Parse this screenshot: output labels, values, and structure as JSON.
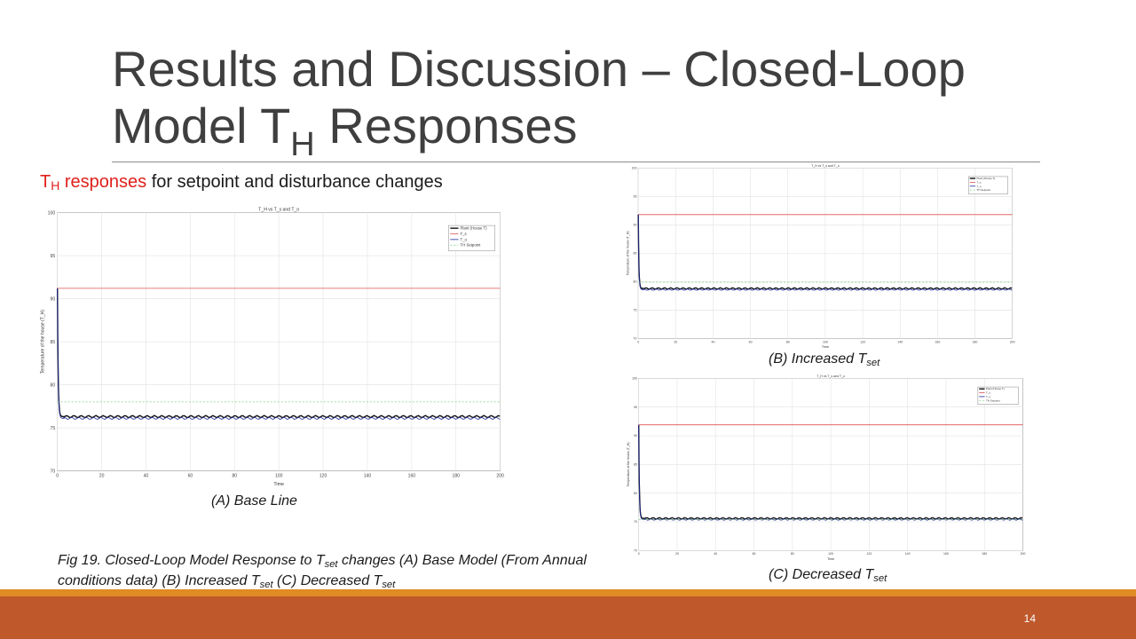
{
  "slide": {
    "title_line1": "Results and Discussion – Closed-Loop",
    "title_line2_a": "Model T",
    "title_line2_sub": "H",
    "title_line2_b": " Responses",
    "subtitle_red_a": "T",
    "subtitle_red_sub": "H",
    "subtitle_red_b": " responses",
    "subtitle_rest": " for setpoint and disturbance changes",
    "caption_a": "(A) Base Line",
    "caption_b_text": "(B) Increased T",
    "caption_b_sub": "set",
    "caption_c_text": "(C) Decreased T",
    "caption_c_sub": "set",
    "fig_caption_1": "Fig 19. Closed-Loop Model Response to T",
    "fig_caption_sub1": "set",
    "fig_caption_2": " changes (A) Base Model (From Annual conditions data) (B) Increased T",
    "fig_caption_sub2": "set",
    "fig_caption_3": "  (C) Decreased T",
    "fig_caption_sub3": "set",
    "page_number": "14"
  },
  "colors": {
    "plant": "#111111",
    "ts": "#e05050",
    "to": "#1f2a9c",
    "setpoint": "#7fcf7f",
    "band_orange": "#e18b24",
    "band_rust": "#bf582b"
  },
  "chart_data": [
    {
      "type": "line",
      "title": "T_H vs T_s and T_o",
      "xlabel": "Time",
      "ylabel": "Temperature of the house (T_H)",
      "xlim": [
        0,
        200
      ],
      "ylim": [
        70,
        100
      ],
      "xticks": [
        0,
        20,
        40,
        60,
        80,
        100,
        120,
        140,
        160,
        180,
        200
      ],
      "yticks": [
        70,
        75,
        80,
        85,
        90,
        95,
        100
      ],
      "grid": true,
      "legend_position": "top-right",
      "legend": [
        "Plant (House T)",
        "T_s",
        "T_o",
        "TH Setpoint"
      ],
      "series": [
        {
          "name": "Plant (House T)",
          "start": 91.2,
          "steady": 76.3,
          "ripple": 0.12,
          "color": "plant"
        },
        {
          "name": "T_s",
          "constant": 91.2,
          "color": "ts"
        },
        {
          "name": "T_o",
          "start": 91.2,
          "steady": 76.1,
          "ripple": 0.12,
          "color": "to"
        },
        {
          "name": "TH Setpoint",
          "constant": 78.0,
          "dashed": true,
          "color": "setpoint"
        }
      ]
    },
    {
      "type": "line",
      "title": "T_H vs T_s and T_o",
      "xlabel": "Time",
      "ylabel": "Temperature of the house (T_H)",
      "xlim": [
        0,
        200
      ],
      "ylim": [
        70,
        100
      ],
      "xticks": [
        0,
        20,
        40,
        60,
        80,
        100,
        120,
        140,
        160,
        180,
        200
      ],
      "yticks": [
        70,
        75,
        80,
        85,
        90,
        95,
        100
      ],
      "grid": true,
      "legend_position": "top-right",
      "legend": [
        "Plant (House T)",
        "T_s",
        "T_o",
        "TH Setpoint"
      ],
      "series": [
        {
          "name": "Plant (House T)",
          "start": 91.8,
          "steady": 78.8,
          "ripple": 0.12,
          "color": "plant"
        },
        {
          "name": "T_s",
          "constant": 91.8,
          "color": "ts"
        },
        {
          "name": "T_o",
          "start": 91.8,
          "steady": 78.6,
          "ripple": 0.12,
          "color": "to"
        },
        {
          "name": "TH Setpoint",
          "constant": 79.9,
          "dashed": true,
          "color": "setpoint"
        }
      ]
    },
    {
      "type": "line",
      "title": "T_H vs T_s and T_o",
      "xlabel": "Time",
      "ylabel": "Temperature of the house (T_H)",
      "xlim": [
        0,
        200
      ],
      "ylim": [
        70,
        100
      ],
      "xticks": [
        0,
        20,
        40,
        60,
        80,
        100,
        120,
        140,
        160,
        180,
        200
      ],
      "yticks": [
        70,
        75,
        80,
        85,
        90,
        95,
        100
      ],
      "grid": true,
      "legend_position": "top-right",
      "legend": [
        "Plant (House T)",
        "T_s",
        "T_o",
        "TH Setpoint"
      ],
      "series": [
        {
          "name": "Plant (House T)",
          "start": 91.9,
          "steady": 75.6,
          "ripple": 0.12,
          "color": "plant"
        },
        {
          "name": "T_s",
          "constant": 91.9,
          "color": "ts"
        },
        {
          "name": "T_o",
          "start": 91.9,
          "steady": 75.4,
          "ripple": 0.12,
          "color": "to"
        },
        {
          "name": "TH Setpoint",
          "constant": 75.4,
          "dashed": true,
          "color": "setpoint"
        }
      ]
    }
  ]
}
